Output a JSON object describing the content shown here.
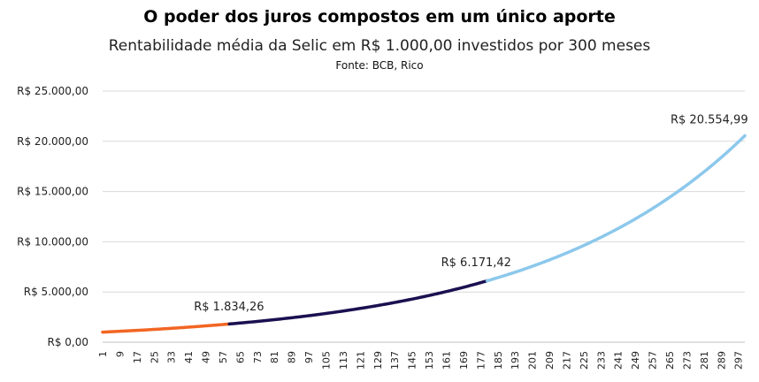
{
  "chart_data": {
    "type": "line",
    "title": "O poder dos juros compostos em um único aporte",
    "subtitle": "Rentabilidade média da Selic em R$ 1.000,00 investidos por 300 meses",
    "source": "Fonte: BCB, Rico",
    "x_start": 1,
    "x_end": 300,
    "x_tick_step": 8,
    "ylim": [
      0,
      25000
    ],
    "yticks": [
      "R$ 0,00",
      "R$ 5.000,00",
      "R$ 10.000,00",
      "R$ 15.000,00",
      "R$ 20.000,00",
      "R$ 25.000,00"
    ],
    "ytick_values": [
      0,
      5000,
      10000,
      15000,
      20000,
      25000
    ],
    "initial_value": 1000,
    "grid": true,
    "legend": "none",
    "segments": [
      {
        "from_month": 1,
        "to_month": 60,
        "color": "#F26522"
      },
      {
        "from_month": 60,
        "to_month": 180,
        "color": "#1A1050"
      },
      {
        "from_month": 180,
        "to_month": 300,
        "color": "#8CC8EC"
      }
    ],
    "annotations": [
      {
        "month": 60,
        "value": 1834.26,
        "label": "R$ 1.834,26"
      },
      {
        "month": 180,
        "value": 6171.42,
        "label": "R$ 6.171,42"
      },
      {
        "month": 300,
        "value": 20554.99,
        "label": "R$ 20.554,99"
      }
    ]
  }
}
